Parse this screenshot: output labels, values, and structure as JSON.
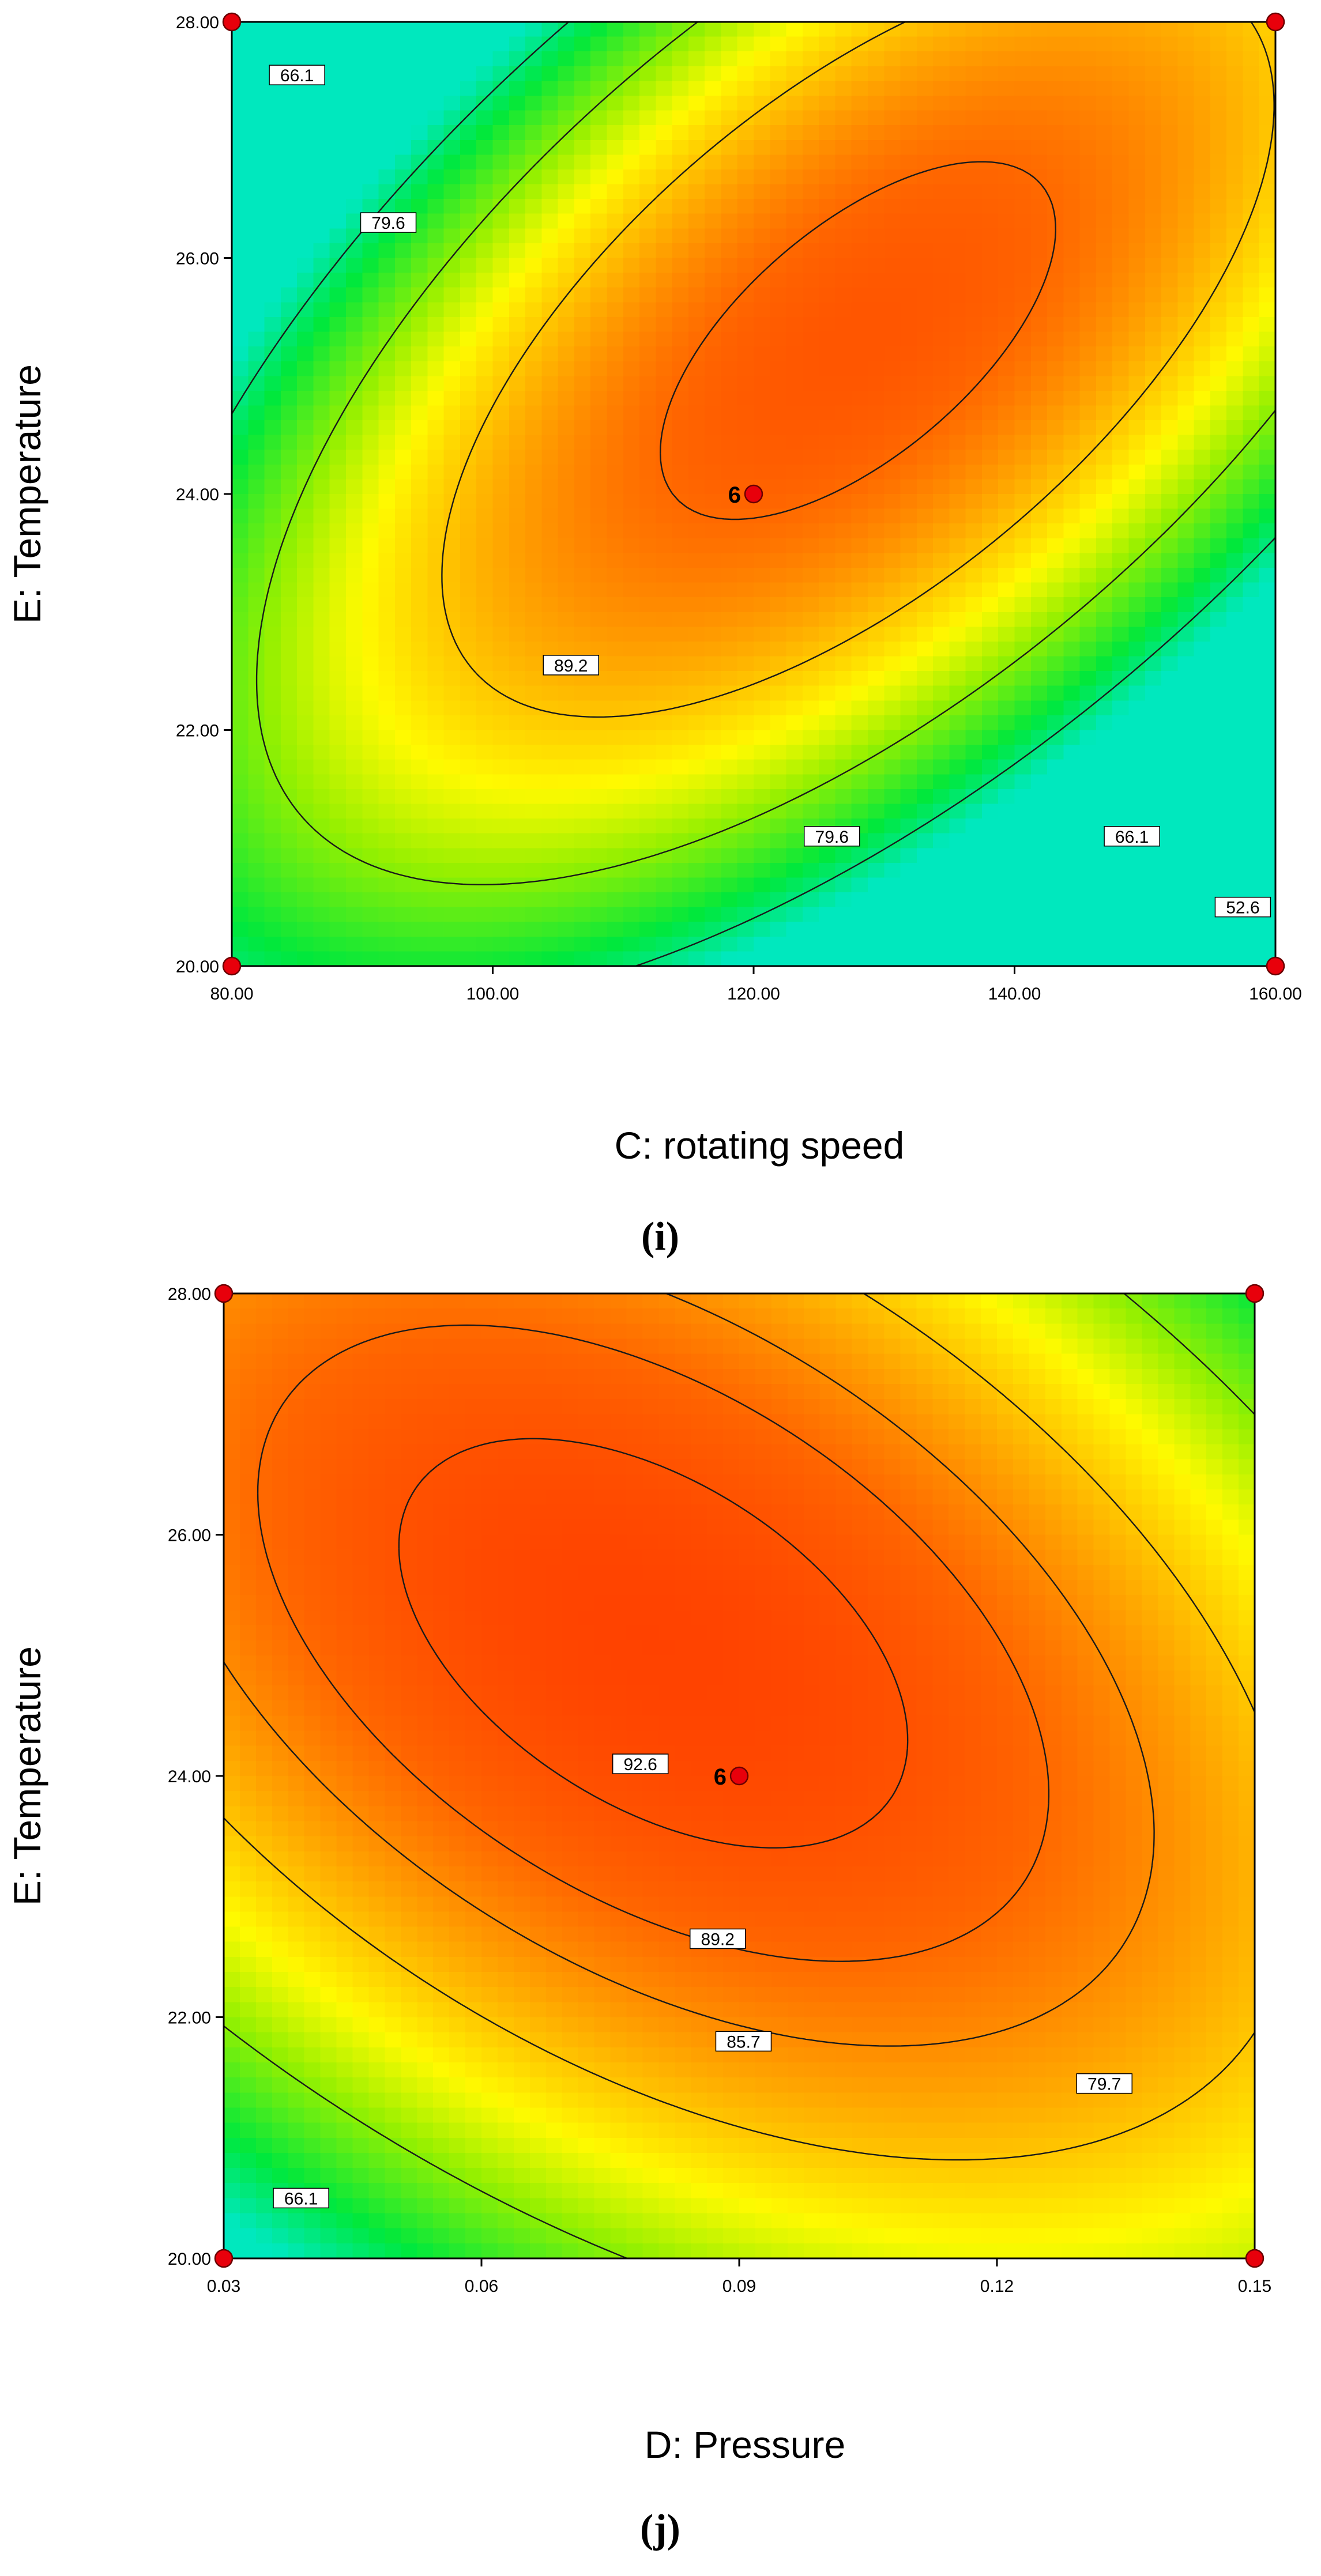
{
  "chart_data": [
    {
      "type": "contour",
      "panel_label": "(i)",
      "xlabel": "C: rotating speed",
      "ylabel": "E: Temperature",
      "xlim": [
        80,
        160
      ],
      "ylim": [
        20,
        28
      ],
      "xticks": [
        "80.00",
        "100.00",
        "120.00",
        "140.00",
        "160.00"
      ],
      "yticks": [
        "20.00",
        "22.00",
        "24.00",
        "26.00",
        "28.00"
      ],
      "contour_levels": [
        52.6,
        66.1,
        79.6,
        89.2
      ],
      "contour_labels": [
        {
          "text": "66.1",
          "x": 85,
          "y": 27.55
        },
        {
          "text": "79.6",
          "x": 92,
          "y": 26.3
        },
        {
          "text": "89.2",
          "x": 106,
          "y": 22.55
        },
        {
          "text": "79.6",
          "x": 126,
          "y": 21.1
        },
        {
          "text": "66.1",
          "x": 149,
          "y": 21.1
        },
        {
          "text": "52.6",
          "x": 157.5,
          "y": 20.5
        }
      ],
      "design_points": [
        {
          "x": 80,
          "y": 20
        },
        {
          "x": 80,
          "y": 28
        },
        {
          "x": 160,
          "y": 20
        },
        {
          "x": 160,
          "y": 28
        },
        {
          "x": 120,
          "y": 24
        }
      ],
      "center_point": {
        "x": 120,
        "y": 24,
        "count": "6"
      },
      "model": {
        "b0": 92.0,
        "x0": 128,
        "y0": 25.3,
        "sx": 40,
        "sy": 4,
        "axx": 32,
        "ayy": 32,
        "axy": -40,
        "ax": 0,
        "ay": 0
      },
      "color_range": [
        48,
        96
      ]
    },
    {
      "type": "contour",
      "panel_label": "(j)",
      "xlabel": "D: Pressure",
      "ylabel": "E: Temperature",
      "xlim": [
        0.03,
        0.15
      ],
      "ylim": [
        20,
        28
      ],
      "xticks": [
        "0.03",
        "0.06",
        "0.09",
        "0.12",
        "0.15"
      ],
      "yticks": [
        "20.00",
        "22.00",
        "24.00",
        "26.00",
        "28.00"
      ],
      "contour_levels": [
        66.1,
        79.7,
        85.7,
        89.2,
        92.6
      ],
      "contour_labels": [
        {
          "text": "92.6",
          "x": 0.0785,
          "y": 24.1
        },
        {
          "text": "89.2",
          "x": 0.0875,
          "y": 22.65
        },
        {
          "text": "85.7",
          "x": 0.0905,
          "y": 21.8
        },
        {
          "text": "79.7",
          "x": 0.1325,
          "y": 21.45
        },
        {
          "text": "66.1",
          "x": 0.039,
          "y": 20.5
        }
      ],
      "design_points": [
        {
          "x": 0.03,
          "y": 20
        },
        {
          "x": 0.03,
          "y": 28
        },
        {
          "x": 0.15,
          "y": 20
        },
        {
          "x": 0.15,
          "y": 28
        },
        {
          "x": 0.09,
          "y": 24
        }
      ],
      "center_point": {
        "x": 0.09,
        "y": 24,
        "count": "6"
      },
      "model": {
        "b0": 95.0,
        "x0": 0.08,
        "y0": 25.1,
        "sx": 0.06,
        "sy": 4,
        "axx": 12.7,
        "ayy": 17.2,
        "axy": 14.0,
        "ax": 0,
        "ay": 0
      },
      "color_range": [
        48,
        96
      ]
    }
  ]
}
